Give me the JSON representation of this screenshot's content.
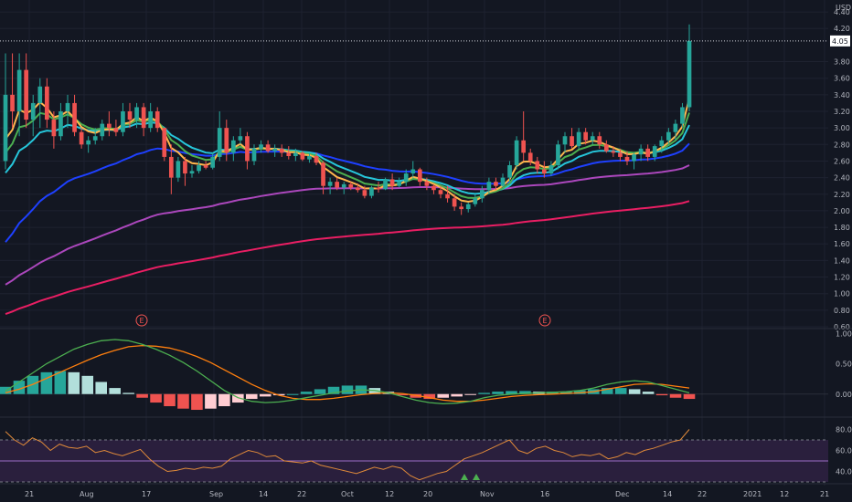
{
  "chart_data": [
    {
      "type": "candlestick",
      "panel": "price",
      "currency": "USD",
      "yticks": [
        "4.40",
        "4.20",
        "3.80",
        "3.60",
        "3.40",
        "3.20",
        "3.00",
        "2.80",
        "2.60",
        "2.40",
        "2.20",
        "2.00",
        "1.80",
        "1.60",
        "1.40",
        "1.20",
        "1.00",
        "0.80",
        "0.60"
      ],
      "ylim": [
        0.6,
        4.5
      ],
      "last_price": "4.05",
      "earnings_marker": "E",
      "earnings_dates": [
        "Aug 9",
        "Nov 12"
      ],
      "colors": {
        "up": "#26a69a",
        "down": "#ef5350",
        "ema_fast": "#ffb74d",
        "ema_2": "#4caf50",
        "ema_3": "#26c6da",
        "ema_4": "#1e40ff",
        "ema_5": "#ab47bc",
        "ema_6": "#e91e63"
      },
      "candles": [
        {
          "o": 2.6,
          "h": 3.9,
          "l": 2.5,
          "c": 3.4
        },
        {
          "o": 3.4,
          "h": 3.9,
          "l": 3.0,
          "c": 3.2
        },
        {
          "o": 3.2,
          "h": 3.9,
          "l": 2.9,
          "c": 3.7
        },
        {
          "o": 3.7,
          "h": 3.9,
          "l": 3.0,
          "c": 3.1
        },
        {
          "o": 3.1,
          "h": 3.4,
          "l": 2.9,
          "c": 3.3
        },
        {
          "o": 3.3,
          "h": 3.6,
          "l": 3.0,
          "c": 3.5
        },
        {
          "o": 3.5,
          "h": 3.6,
          "l": 3.0,
          "c": 3.1
        },
        {
          "o": 3.1,
          "h": 3.2,
          "l": 2.75,
          "c": 2.9
        },
        {
          "o": 2.9,
          "h": 3.3,
          "l": 2.85,
          "c": 3.2
        },
        {
          "o": 3.2,
          "h": 3.4,
          "l": 3.0,
          "c": 3.3
        },
        {
          "o": 3.3,
          "h": 3.4,
          "l": 2.9,
          "c": 2.95
        },
        {
          "o": 2.95,
          "h": 3.0,
          "l": 2.75,
          "c": 2.8
        },
        {
          "o": 2.8,
          "h": 2.9,
          "l": 2.7,
          "c": 2.85
        },
        {
          "o": 2.85,
          "h": 3.0,
          "l": 2.8,
          "c": 2.9
        },
        {
          "o": 2.9,
          "h": 3.1,
          "l": 2.85,
          "c": 3.05
        },
        {
          "o": 3.05,
          "h": 3.2,
          "l": 2.9,
          "c": 3.0
        },
        {
          "o": 3.0,
          "h": 3.1,
          "l": 2.9,
          "c": 2.95
        },
        {
          "o": 2.95,
          "h": 3.3,
          "l": 2.9,
          "c": 3.2
        },
        {
          "o": 3.2,
          "h": 3.3,
          "l": 3.0,
          "c": 3.1
        },
        {
          "o": 3.1,
          "h": 3.3,
          "l": 3.0,
          "c": 3.25
        },
        {
          "o": 3.25,
          "h": 3.3,
          "l": 2.9,
          "c": 3.0
        },
        {
          "o": 3.0,
          "h": 3.3,
          "l": 2.95,
          "c": 3.2
        },
        {
          "o": 3.2,
          "h": 3.25,
          "l": 2.95,
          "c": 3.0
        },
        {
          "o": 3.0,
          "h": 3.0,
          "l": 2.6,
          "c": 2.65
        },
        {
          "o": 2.65,
          "h": 2.8,
          "l": 2.2,
          "c": 2.4
        },
        {
          "o": 2.4,
          "h": 2.65,
          "l": 2.35,
          "c": 2.6
        },
        {
          "o": 2.6,
          "h": 2.65,
          "l": 2.3,
          "c": 2.45
        },
        {
          "o": 2.45,
          "h": 2.55,
          "l": 2.4,
          "c": 2.48
        },
        {
          "o": 2.48,
          "h": 2.6,
          "l": 2.45,
          "c": 2.55
        },
        {
          "o": 2.55,
          "h": 2.6,
          "l": 2.5,
          "c": 2.52
        },
        {
          "o": 2.52,
          "h": 2.7,
          "l": 2.5,
          "c": 2.65
        },
        {
          "o": 2.65,
          "h": 3.2,
          "l": 2.6,
          "c": 3.0
        },
        {
          "o": 3.0,
          "h": 3.1,
          "l": 2.6,
          "c": 2.7
        },
        {
          "o": 2.7,
          "h": 2.9,
          "l": 2.6,
          "c": 2.85
        },
        {
          "o": 2.85,
          "h": 3.0,
          "l": 2.8,
          "c": 2.9
        },
        {
          "o": 2.9,
          "h": 2.95,
          "l": 2.5,
          "c": 2.6
        },
        {
          "o": 2.6,
          "h": 2.8,
          "l": 2.55,
          "c": 2.75
        },
        {
          "o": 2.75,
          "h": 2.85,
          "l": 2.7,
          "c": 2.8
        },
        {
          "o": 2.8,
          "h": 2.85,
          "l": 2.7,
          "c": 2.72
        },
        {
          "o": 2.72,
          "h": 2.8,
          "l": 2.65,
          "c": 2.75
        },
        {
          "o": 2.75,
          "h": 2.8,
          "l": 2.65,
          "c": 2.7
        },
        {
          "o": 2.7,
          "h": 2.78,
          "l": 2.62,
          "c": 2.66
        },
        {
          "o": 2.66,
          "h": 2.75,
          "l": 2.6,
          "c": 2.7
        },
        {
          "o": 2.7,
          "h": 2.72,
          "l": 2.6,
          "c": 2.62
        },
        {
          "o": 2.62,
          "h": 2.7,
          "l": 2.58,
          "c": 2.66
        },
        {
          "o": 2.66,
          "h": 2.7,
          "l": 2.55,
          "c": 2.58
        },
        {
          "o": 2.58,
          "h": 2.6,
          "l": 2.2,
          "c": 2.3
        },
        {
          "o": 2.3,
          "h": 2.4,
          "l": 2.2,
          "c": 2.35
        },
        {
          "o": 2.35,
          "h": 2.4,
          "l": 2.25,
          "c": 2.28
        },
        {
          "o": 2.28,
          "h": 2.35,
          "l": 2.2,
          "c": 2.32
        },
        {
          "o": 2.32,
          "h": 2.35,
          "l": 2.25,
          "c": 2.28
        },
        {
          "o": 2.28,
          "h": 2.33,
          "l": 2.22,
          "c": 2.25
        },
        {
          "o": 2.25,
          "h": 2.3,
          "l": 2.15,
          "c": 2.18
        },
        {
          "o": 2.18,
          "h": 2.3,
          "l": 2.15,
          "c": 2.28
        },
        {
          "o": 2.28,
          "h": 2.35,
          "l": 2.22,
          "c": 2.26
        },
        {
          "o": 2.26,
          "h": 2.4,
          "l": 2.25,
          "c": 2.38
        },
        {
          "o": 2.38,
          "h": 2.45,
          "l": 2.25,
          "c": 2.3
        },
        {
          "o": 2.3,
          "h": 2.4,
          "l": 2.28,
          "c": 2.35
        },
        {
          "o": 2.35,
          "h": 2.5,
          "l": 2.3,
          "c": 2.45
        },
        {
          "o": 2.45,
          "h": 2.6,
          "l": 2.4,
          "c": 2.5
        },
        {
          "o": 2.5,
          "h": 2.52,
          "l": 2.3,
          "c": 2.35
        },
        {
          "o": 2.35,
          "h": 2.4,
          "l": 2.25,
          "c": 2.3
        },
        {
          "o": 2.3,
          "h": 2.32,
          "l": 2.2,
          "c": 2.25
        },
        {
          "o": 2.25,
          "h": 2.3,
          "l": 2.15,
          "c": 2.2
        },
        {
          "o": 2.2,
          "h": 2.3,
          "l": 2.1,
          "c": 2.15
        },
        {
          "o": 2.15,
          "h": 2.2,
          "l": 2.0,
          "c": 2.05
        },
        {
          "o": 2.05,
          "h": 2.1,
          "l": 1.95,
          "c": 2.02
        },
        {
          "o": 2.02,
          "h": 2.1,
          "l": 1.98,
          "c": 2.08
        },
        {
          "o": 2.08,
          "h": 2.2,
          "l": 2.05,
          "c": 2.15
        },
        {
          "o": 2.15,
          "h": 2.3,
          "l": 2.1,
          "c": 2.25
        },
        {
          "o": 2.25,
          "h": 2.4,
          "l": 2.2,
          "c": 2.35
        },
        {
          "o": 2.35,
          "h": 2.4,
          "l": 2.25,
          "c": 2.3
        },
        {
          "o": 2.3,
          "h": 2.45,
          "l": 2.28,
          "c": 2.4
        },
        {
          "o": 2.4,
          "h": 2.6,
          "l": 2.35,
          "c": 2.55
        },
        {
          "o": 2.55,
          "h": 2.9,
          "l": 2.5,
          "c": 2.85
        },
        {
          "o": 2.85,
          "h": 3.2,
          "l": 2.6,
          "c": 2.7
        },
        {
          "o": 2.7,
          "h": 2.75,
          "l": 2.55,
          "c": 2.6
        },
        {
          "o": 2.6,
          "h": 2.65,
          "l": 2.45,
          "c": 2.5
        },
        {
          "o": 2.5,
          "h": 2.6,
          "l": 2.4,
          "c": 2.45
        },
        {
          "o": 2.45,
          "h": 2.6,
          "l": 2.42,
          "c": 2.55
        },
        {
          "o": 2.55,
          "h": 2.85,
          "l": 2.5,
          "c": 2.8
        },
        {
          "o": 2.8,
          "h": 2.95,
          "l": 2.7,
          "c": 2.9
        },
        {
          "o": 2.9,
          "h": 3.0,
          "l": 2.75,
          "c": 2.78
        },
        {
          "o": 2.78,
          "h": 3.0,
          "l": 2.75,
          "c": 2.95
        },
        {
          "o": 2.95,
          "h": 3.0,
          "l": 2.8,
          "c": 2.85
        },
        {
          "o": 2.85,
          "h": 2.95,
          "l": 2.8,
          "c": 2.9
        },
        {
          "o": 2.9,
          "h": 2.95,
          "l": 2.75,
          "c": 2.8
        },
        {
          "o": 2.8,
          "h": 2.85,
          "l": 2.7,
          "c": 2.72
        },
        {
          "o": 2.72,
          "h": 2.78,
          "l": 2.65,
          "c": 2.7
        },
        {
          "o": 2.7,
          "h": 2.75,
          "l": 2.6,
          "c": 2.65
        },
        {
          "o": 2.65,
          "h": 2.72,
          "l": 2.55,
          "c": 2.6
        },
        {
          "o": 2.6,
          "h": 2.7,
          "l": 2.5,
          "c": 2.68
        },
        {
          "o": 2.68,
          "h": 2.8,
          "l": 2.6,
          "c": 2.75
        },
        {
          "o": 2.75,
          "h": 2.8,
          "l": 2.6,
          "c": 2.65
        },
        {
          "o": 2.65,
          "h": 2.8,
          "l": 2.6,
          "c": 2.78
        },
        {
          "o": 2.78,
          "h": 2.9,
          "l": 2.7,
          "c": 2.85
        },
        {
          "o": 2.85,
          "h": 3.0,
          "l": 2.8,
          "c": 2.95
        },
        {
          "o": 2.95,
          "h": 3.1,
          "l": 2.85,
          "c": 3.05
        },
        {
          "o": 3.05,
          "h": 3.3,
          "l": 3.0,
          "c": 3.25
        },
        {
          "o": 3.25,
          "h": 4.25,
          "l": 3.2,
          "c": 4.05
        }
      ]
    },
    {
      "type": "line",
      "panel": "macd",
      "yticks": [
        "1.00",
        "0.50",
        "0.00"
      ],
      "ylim": [
        -0.35,
        1.05
      ],
      "macd_line": [
        0.05,
        0.2,
        0.35,
        0.5,
        0.62,
        0.74,
        0.82,
        0.88,
        0.9,
        0.88,
        0.82,
        0.74,
        0.64,
        0.52,
        0.38,
        0.22,
        0.06,
        -0.06,
        -0.12,
        -0.14,
        -0.13,
        -0.1,
        -0.06,
        -0.02,
        0.02,
        0.05,
        0.07,
        0.06,
        0.02,
        -0.04,
        -0.1,
        -0.14,
        -0.16,
        -0.15,
        -0.12,
        -0.06,
        -0.02,
        0.0,
        0.01,
        0.02,
        0.03,
        0.04,
        0.06,
        0.1,
        0.16,
        0.2,
        0.22,
        0.2,
        0.14,
        0.08,
        0.02
      ],
      "signal_line": [
        0.02,
        0.08,
        0.16,
        0.26,
        0.36,
        0.46,
        0.56,
        0.65,
        0.72,
        0.78,
        0.8,
        0.79,
        0.76,
        0.7,
        0.62,
        0.52,
        0.4,
        0.28,
        0.16,
        0.06,
        -0.02,
        -0.07,
        -0.09,
        -0.09,
        -0.07,
        -0.04,
        -0.01,
        0.01,
        0.02,
        0.01,
        -0.02,
        -0.06,
        -0.1,
        -0.12,
        -0.12,
        -0.1,
        -0.07,
        -0.04,
        -0.02,
        -0.01,
        0.0,
        0.01,
        0.02,
        0.04,
        0.08,
        0.12,
        0.16,
        0.17,
        0.16,
        0.13,
        0.1
      ],
      "histogram": [
        0.12,
        0.22,
        0.3,
        0.36,
        0.38,
        0.36,
        0.3,
        0.2,
        0.1,
        0.02,
        -0.06,
        -0.14,
        -0.2,
        -0.24,
        -0.26,
        -0.24,
        -0.2,
        -0.14,
        -0.08,
        -0.04,
        -0.02,
        0.0,
        0.04,
        0.08,
        0.12,
        0.14,
        0.14,
        0.1,
        0.04,
        -0.02,
        -0.06,
        -0.08,
        -0.06,
        -0.04,
        -0.01,
        0.02,
        0.04,
        0.05,
        0.05,
        0.04,
        0.04,
        0.04,
        0.06,
        0.08,
        0.1,
        0.1,
        0.08,
        0.04,
        -0.02,
        -0.06,
        -0.08
      ],
      "colors": {
        "macd": "#4caf50",
        "signal": "#ff7f0e",
        "hist_up": "#26a69a",
        "hist_up_light": "#b2dfdb",
        "hist_down": "#ef5350",
        "hist_down_light": "#ffcdd2"
      }
    },
    {
      "type": "line",
      "panel": "rsi",
      "yticks": [
        "80.00",
        "60.00",
        "40.00"
      ],
      "ylim": [
        30,
        90
      ],
      "upper_band": 70,
      "middle_band": 50,
      "lower_band": 30,
      "rsi": [
        78,
        70,
        65,
        72,
        68,
        60,
        66,
        63,
        62,
        64,
        58,
        60,
        57,
        55,
        58,
        61,
        52,
        45,
        40,
        41,
        43,
        42,
        44,
        43,
        45,
        52,
        56,
        60,
        58,
        54,
        55,
        50,
        49,
        48,
        50,
        46,
        44,
        42,
        40,
        38,
        41,
        44,
        42,
        45,
        43,
        36,
        32,
        35,
        38,
        40,
        46,
        52,
        55,
        58,
        62,
        66,
        70,
        60,
        57,
        62,
        64,
        60,
        58,
        54,
        56,
        55,
        57,
        52,
        54,
        58,
        56,
        60,
        62,
        65,
        68,
        70,
        80
      ],
      "colors": {
        "line": "#e08a3a",
        "band_fill": "#2a1f3d",
        "band_line": "#9c6cc8"
      }
    }
  ],
  "x_axis": {
    "labels": [
      "21",
      "Aug",
      "17",
      "Sep",
      "14",
      "22",
      "Oct",
      "12",
      "20",
      "Nov",
      "16",
      "Dec",
      "14",
      "22",
      "2021",
      "12",
      "21"
    ]
  }
}
